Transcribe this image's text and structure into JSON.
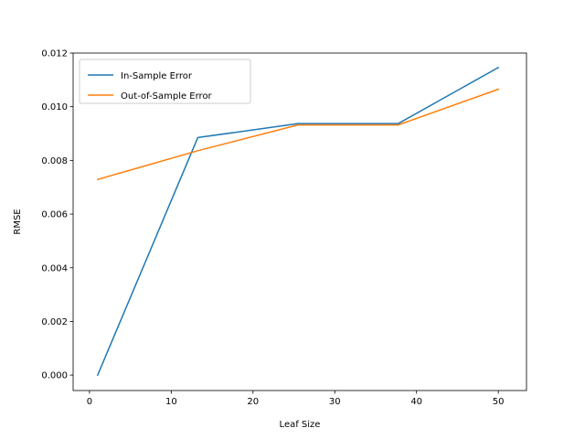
{
  "chart_data": {
    "type": "line",
    "title": "",
    "xlabel": "Leaf Size",
    "ylabel": "RMSE",
    "xlim": [
      -2.0,
      53.45
    ],
    "ylim": [
      -0.000575,
      0.012
    ],
    "xticks": [
      0,
      10,
      20,
      30,
      40,
      50
    ],
    "xtick_labels": [
      "0",
      "10",
      "20",
      "30",
      "40",
      "50"
    ],
    "yticks": [
      0.0,
      0.002,
      0.004,
      0.006,
      0.008,
      0.01,
      0.012
    ],
    "ytick_labels": [
      "0.000",
      "0.002",
      "0.004",
      "0.006",
      "0.008",
      "0.010",
      "0.012"
    ],
    "grid": false,
    "legend_position": "top-left",
    "series": [
      {
        "name": "In-Sample Error",
        "color": "#1f77b4",
        "x": [
          1,
          13.25,
          25.5,
          37.75,
          50
        ],
        "y": [
          0.0,
          0.00885,
          0.00937,
          0.00937,
          0.01146
        ]
      },
      {
        "name": "Out-of-Sample Error",
        "color": "#ff7f0e",
        "x": [
          1,
          13.25,
          25.5,
          37.75,
          50
        ],
        "y": [
          0.00729,
          0.00836,
          0.00932,
          0.00932,
          0.01065
        ]
      }
    ]
  }
}
